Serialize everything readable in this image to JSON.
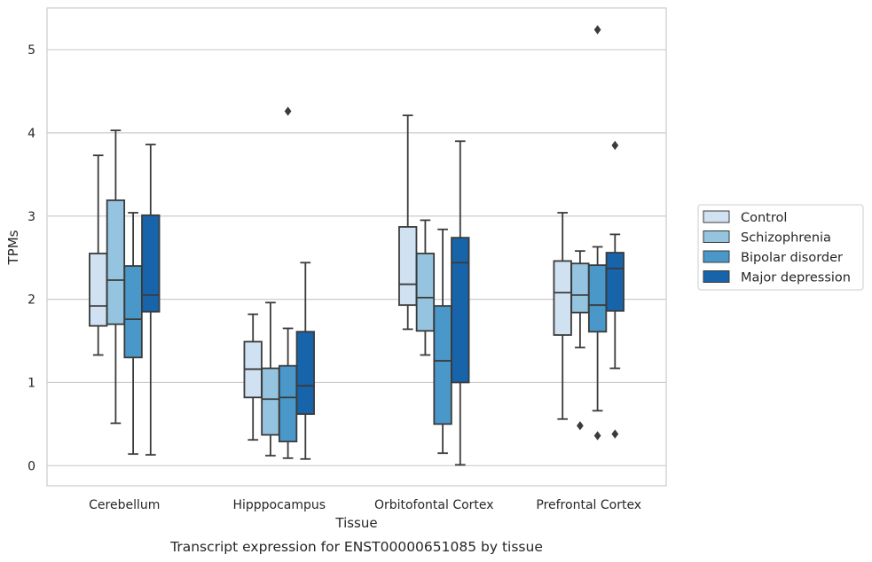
{
  "caption": "Transcript expression for ENST00000651085 by tissue",
  "chart_data": {
    "type": "box",
    "xlabel": "Tissue",
    "ylabel": "TPMs",
    "ylim": [
      -0.24,
      5.5
    ],
    "yticks": [
      0,
      1,
      2,
      3,
      4,
      5
    ],
    "grid": "horizontal",
    "legend_position": "right",
    "categories": [
      "Cerebellum",
      "Hipppocampus",
      "Orbitofontal Cortex",
      "Prefrontal Cortex"
    ],
    "series": [
      {
        "name": "Control",
        "color": "#d0e1f2",
        "boxes": [
          {
            "whislo": 1.33,
            "q1": 1.68,
            "med": 1.92,
            "q3": 2.55,
            "whishi": 3.73,
            "fliers": []
          },
          {
            "whislo": 0.31,
            "q1": 0.82,
            "med": 1.16,
            "q3": 1.49,
            "whishi": 1.82,
            "fliers": []
          },
          {
            "whislo": 1.64,
            "q1": 1.93,
            "med": 2.18,
            "q3": 2.87,
            "whishi": 4.21,
            "fliers": []
          },
          {
            "whislo": 0.56,
            "q1": 1.57,
            "med": 2.08,
            "q3": 2.46,
            "whishi": 3.04,
            "fliers": []
          }
        ]
      },
      {
        "name": "Schizophrenia",
        "color": "#94c4df",
        "boxes": [
          {
            "whislo": 0.51,
            "q1": 1.7,
            "med": 2.23,
            "q3": 3.19,
            "whishi": 4.03,
            "fliers": []
          },
          {
            "whislo": 0.12,
            "q1": 0.37,
            "med": 0.8,
            "q3": 1.17,
            "whishi": 1.96,
            "fliers": []
          },
          {
            "whislo": 1.33,
            "q1": 1.62,
            "med": 2.02,
            "q3": 2.55,
            "whishi": 2.95,
            "fliers": []
          },
          {
            "whislo": 1.42,
            "q1": 1.84,
            "med": 2.05,
            "q3": 2.43,
            "whishi": 2.58,
            "fliers": [
              0.48
            ]
          }
        ]
      },
      {
        "name": "Bipolar disorder",
        "color": "#4a98c9",
        "boxes": [
          {
            "whislo": 0.14,
            "q1": 1.3,
            "med": 1.76,
            "q3": 2.4,
            "whishi": 3.04,
            "fliers": []
          },
          {
            "whislo": 0.09,
            "q1": 0.29,
            "med": 0.82,
            "q3": 1.2,
            "whishi": 1.65,
            "fliers": [
              4.26
            ]
          },
          {
            "whislo": 0.15,
            "q1": 0.5,
            "med": 1.26,
            "q3": 1.92,
            "whishi": 2.84,
            "fliers": []
          },
          {
            "whislo": 0.66,
            "q1": 1.61,
            "med": 1.93,
            "q3": 2.41,
            "whishi": 2.63,
            "fliers": [
              0.36,
              5.24
            ]
          }
        ]
      },
      {
        "name": "Major depression",
        "color": "#1764ab",
        "boxes": [
          {
            "whislo": 0.13,
            "q1": 1.85,
            "med": 2.05,
            "q3": 3.01,
            "whishi": 3.86,
            "fliers": []
          },
          {
            "whislo": 0.08,
            "q1": 0.62,
            "med": 0.96,
            "q3": 1.61,
            "whishi": 2.44,
            "fliers": []
          },
          {
            "whislo": 0.01,
            "q1": 1.0,
            "med": 2.44,
            "q3": 2.74,
            "whishi": 3.9,
            "fliers": []
          },
          {
            "whislo": 1.17,
            "q1": 1.86,
            "med": 2.37,
            "q3": 2.56,
            "whishi": 2.78,
            "fliers": [
              0.38,
              3.85
            ]
          }
        ]
      }
    ]
  }
}
